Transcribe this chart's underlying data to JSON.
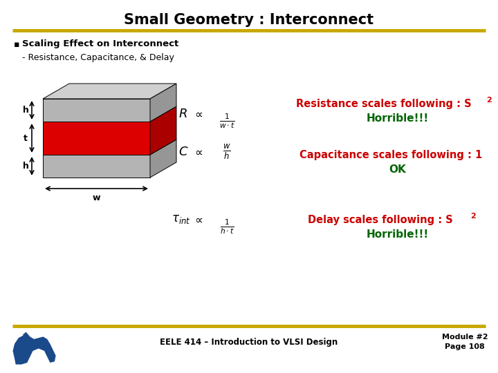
{
  "title": "Small Geometry : Interconnect",
  "bullet": "Scaling Effect on Interconnect",
  "sub_bullet": "- Resistance, Capacitance, & Delay",
  "footer_left": "EELE 414 – Introduction to VLSI Design",
  "footer_right1": "Module #2",
  "footer_right2": "Page 108",
  "title_color": "#000000",
  "gold_line_color": "#C8A800",
  "red_color": "#CC0000",
  "green_color": "#006400",
  "bg_color": "#FFFFFF",
  "bullet_color": "#000000",
  "box_gray_front": "#B4B4B4",
  "box_gray_top": "#D0D0D0",
  "box_gray_side": "#969696",
  "box_red_front": "#DD0000",
  "box_red_side": "#AA0000"
}
